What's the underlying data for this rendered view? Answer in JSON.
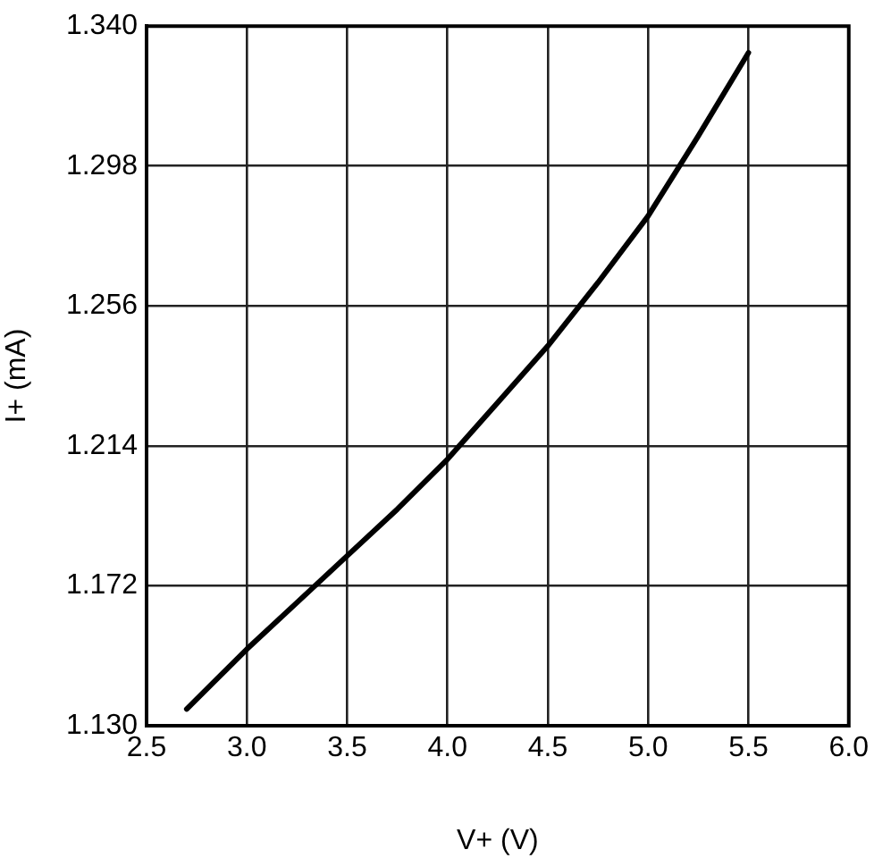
{
  "chart_data": {
    "type": "line",
    "xlabel": "V+ (V)",
    "ylabel": "I+ (mA)",
    "x": [
      2.7,
      3.0,
      3.25,
      3.5,
      3.75,
      4.0,
      4.25,
      4.5,
      4.75,
      5.0,
      5.25,
      5.5
    ],
    "series": [
      {
        "color": "#000000",
        "values": [
          1.135,
          1.153,
          1.167,
          1.181,
          1.195,
          1.21,
          1.227,
          1.244,
          1.263,
          1.283,
          1.307,
          1.332
        ]
      }
    ],
    "xlim": [
      2.5,
      6.0
    ],
    "xticks": [
      2.5,
      {
        "value": 3.0,
        "label": "3.0"
      },
      3.5,
      {
        "value": 4.0,
        "label": "4.0"
      },
      4.5,
      {
        "value": 5.0,
        "label": "5.0"
      },
      5.5,
      {
        "value": 6.0,
        "label": "6.0"
      }
    ],
    "ylim": [
      1.13,
      1.34
    ],
    "yticks": [
      {
        "value": 1.13,
        "label": "1.130"
      },
      1.172,
      1.214,
      1.256,
      1.298,
      {
        "value": 1.34,
        "label": "1.340"
      }
    ],
    "grid": true,
    "marker": "none",
    "line_style": "solid"
  }
}
